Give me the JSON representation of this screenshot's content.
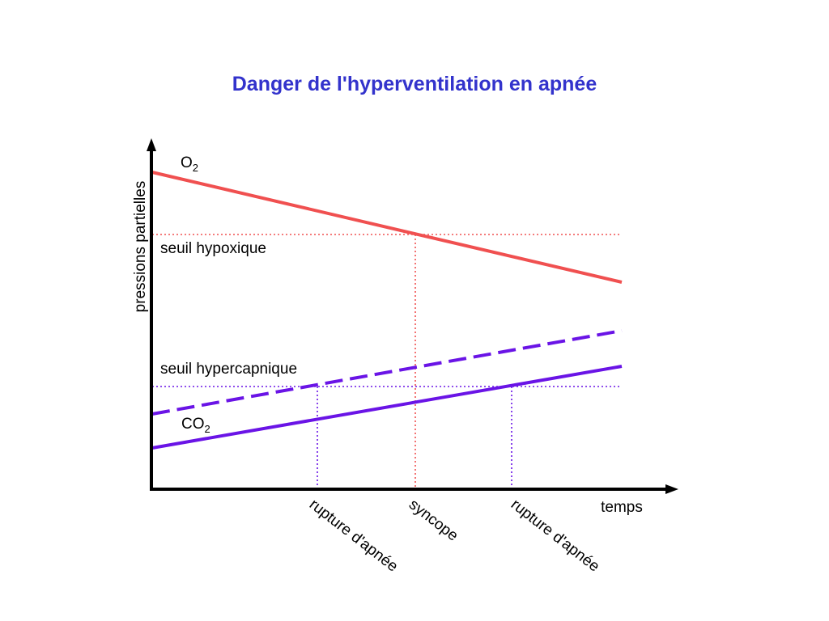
{
  "title": "Danger de l'hyperventilation en apnée",
  "axes": {
    "y_label": "pressions partielles",
    "x_label": "temps"
  },
  "curves": {
    "o2": {
      "label_main": "O",
      "label_sub": "2",
      "color": "#f05050"
    },
    "co2": {
      "label_main": "CO",
      "label_sub": "2",
      "color": "#6a14e6"
    },
    "co2_hyperventilation": {
      "color": "#6a14e6",
      "style": "dashed"
    }
  },
  "thresholds": {
    "hypoxic": {
      "label": "seuil hypoxique",
      "color": "#f05050",
      "style": "dotted"
    },
    "hypercapnic": {
      "label": "seuil hypercapnique",
      "color": "#6a14e6",
      "style": "dotted"
    }
  },
  "events": [
    {
      "key": "rupture_early",
      "label": "rupture d'apnée",
      "color": "#6a14e6"
    },
    {
      "key": "syncope",
      "label": "syncope",
      "color": "#f05050"
    },
    {
      "key": "rupture_normal",
      "label": "rupture d'apnée",
      "color": "#6a14e6"
    }
  ]
}
